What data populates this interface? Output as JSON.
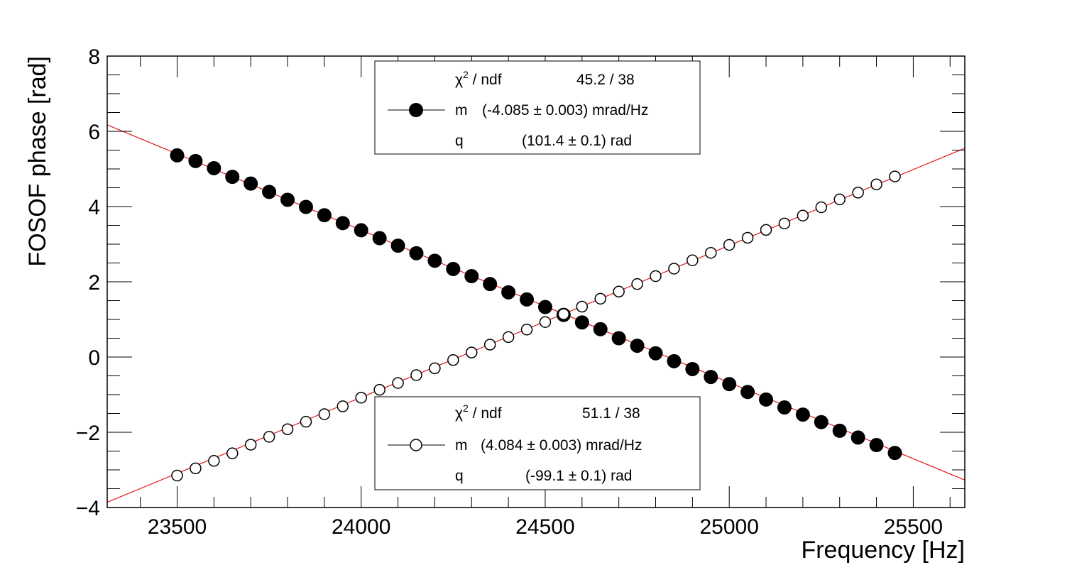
{
  "chart_data": {
    "type": "scatter",
    "xlabel": "Frequency [Hz]",
    "ylabel": "FOSOF phase [rad]",
    "xlim": [
      23310,
      25640
    ],
    "ylim": [
      -4,
      8
    ],
    "x_ticks": [
      "23500",
      "24000",
      "24500",
      "25000",
      "25500"
    ],
    "y_ticks": [
      "−4",
      "−2",
      "0",
      "2",
      "4",
      "6",
      "8"
    ],
    "grid": false,
    "colors": {
      "fit_line": "#e8161b",
      "marker": "#000000",
      "frame": "#000000"
    },
    "series": [
      {
        "marker": "filled-circle",
        "x": [
          23500,
          23550,
          23600,
          23650,
          23700,
          23750,
          23800,
          23850,
          23900,
          23950,
          24000,
          24050,
          24100,
          24150,
          24200,
          24250,
          24300,
          24350,
          24400,
          24450,
          24500,
          24550,
          24600,
          24650,
          24700,
          24750,
          24800,
          24850,
          24900,
          24950,
          25000,
          25050,
          25100,
          25150,
          25200,
          25250,
          25300,
          25350,
          25400,
          25450
        ],
        "y": [
          5.36,
          5.21,
          5.02,
          4.79,
          4.61,
          4.39,
          4.18,
          3.99,
          3.77,
          3.56,
          3.37,
          3.16,
          2.96,
          2.76,
          2.56,
          2.34,
          2.15,
          1.94,
          1.72,
          1.53,
          1.33,
          1.12,
          0.92,
          0.74,
          0.5,
          0.3,
          0.1,
          -0.11,
          -0.32,
          -0.53,
          -0.72,
          -0.93,
          -1.13,
          -1.34,
          -1.53,
          -1.73,
          -1.96,
          -2.14,
          -2.34,
          -2.55
        ],
        "fit": {
          "x": [
            23310,
            25640
          ],
          "y": [
            6.17,
            -3.27
          ]
        }
      },
      {
        "marker": "open-circle",
        "x": [
          23500,
          23550,
          23600,
          23650,
          23700,
          23750,
          23800,
          23850,
          23900,
          23950,
          24000,
          24050,
          24100,
          24150,
          24200,
          24250,
          24300,
          24350,
          24400,
          24450,
          24500,
          24550,
          24600,
          24650,
          24700,
          24750,
          24800,
          24850,
          24900,
          24950,
          25000,
          25050,
          25100,
          25150,
          25200,
          25250,
          25300,
          25350,
          25400,
          25450
        ],
        "y": [
          -3.15,
          -2.96,
          -2.76,
          -2.56,
          -2.33,
          -2.12,
          -1.92,
          -1.72,
          -1.52,
          -1.31,
          -1.08,
          -0.87,
          -0.69,
          -0.48,
          -0.3,
          -0.08,
          0.12,
          0.33,
          0.53,
          0.73,
          0.93,
          1.14,
          1.34,
          1.55,
          1.74,
          1.94,
          2.15,
          2.35,
          2.57,
          2.77,
          2.98,
          3.17,
          3.38,
          3.55,
          3.76,
          3.98,
          4.19,
          4.37,
          4.59,
          4.8
        ],
        "fit": {
          "x": [
            23310,
            25640
          ],
          "y": [
            -3.86,
            5.55
          ]
        }
      }
    ],
    "legends": [
      {
        "chi_label": "χ",
        "chi_sup": "2",
        "chi_rest": " / ndf",
        "chi_value": "45.2 / 38",
        "m_label": "m",
        "m_value": "(-4.085 ± 0.003) mrad/Hz",
        "q_label": "q",
        "q_value": "(101.4 ± 0.1) rad"
      },
      {
        "chi_label": "χ",
        "chi_sup": "2",
        "chi_rest": " / ndf",
        "chi_value": "51.1 / 38",
        "m_label": "m",
        "m_value": "(4.084 ± 0.003) mrad/Hz",
        "q_label": "q",
        "q_value": "(-99.1 ± 0.1) rad"
      }
    ]
  }
}
